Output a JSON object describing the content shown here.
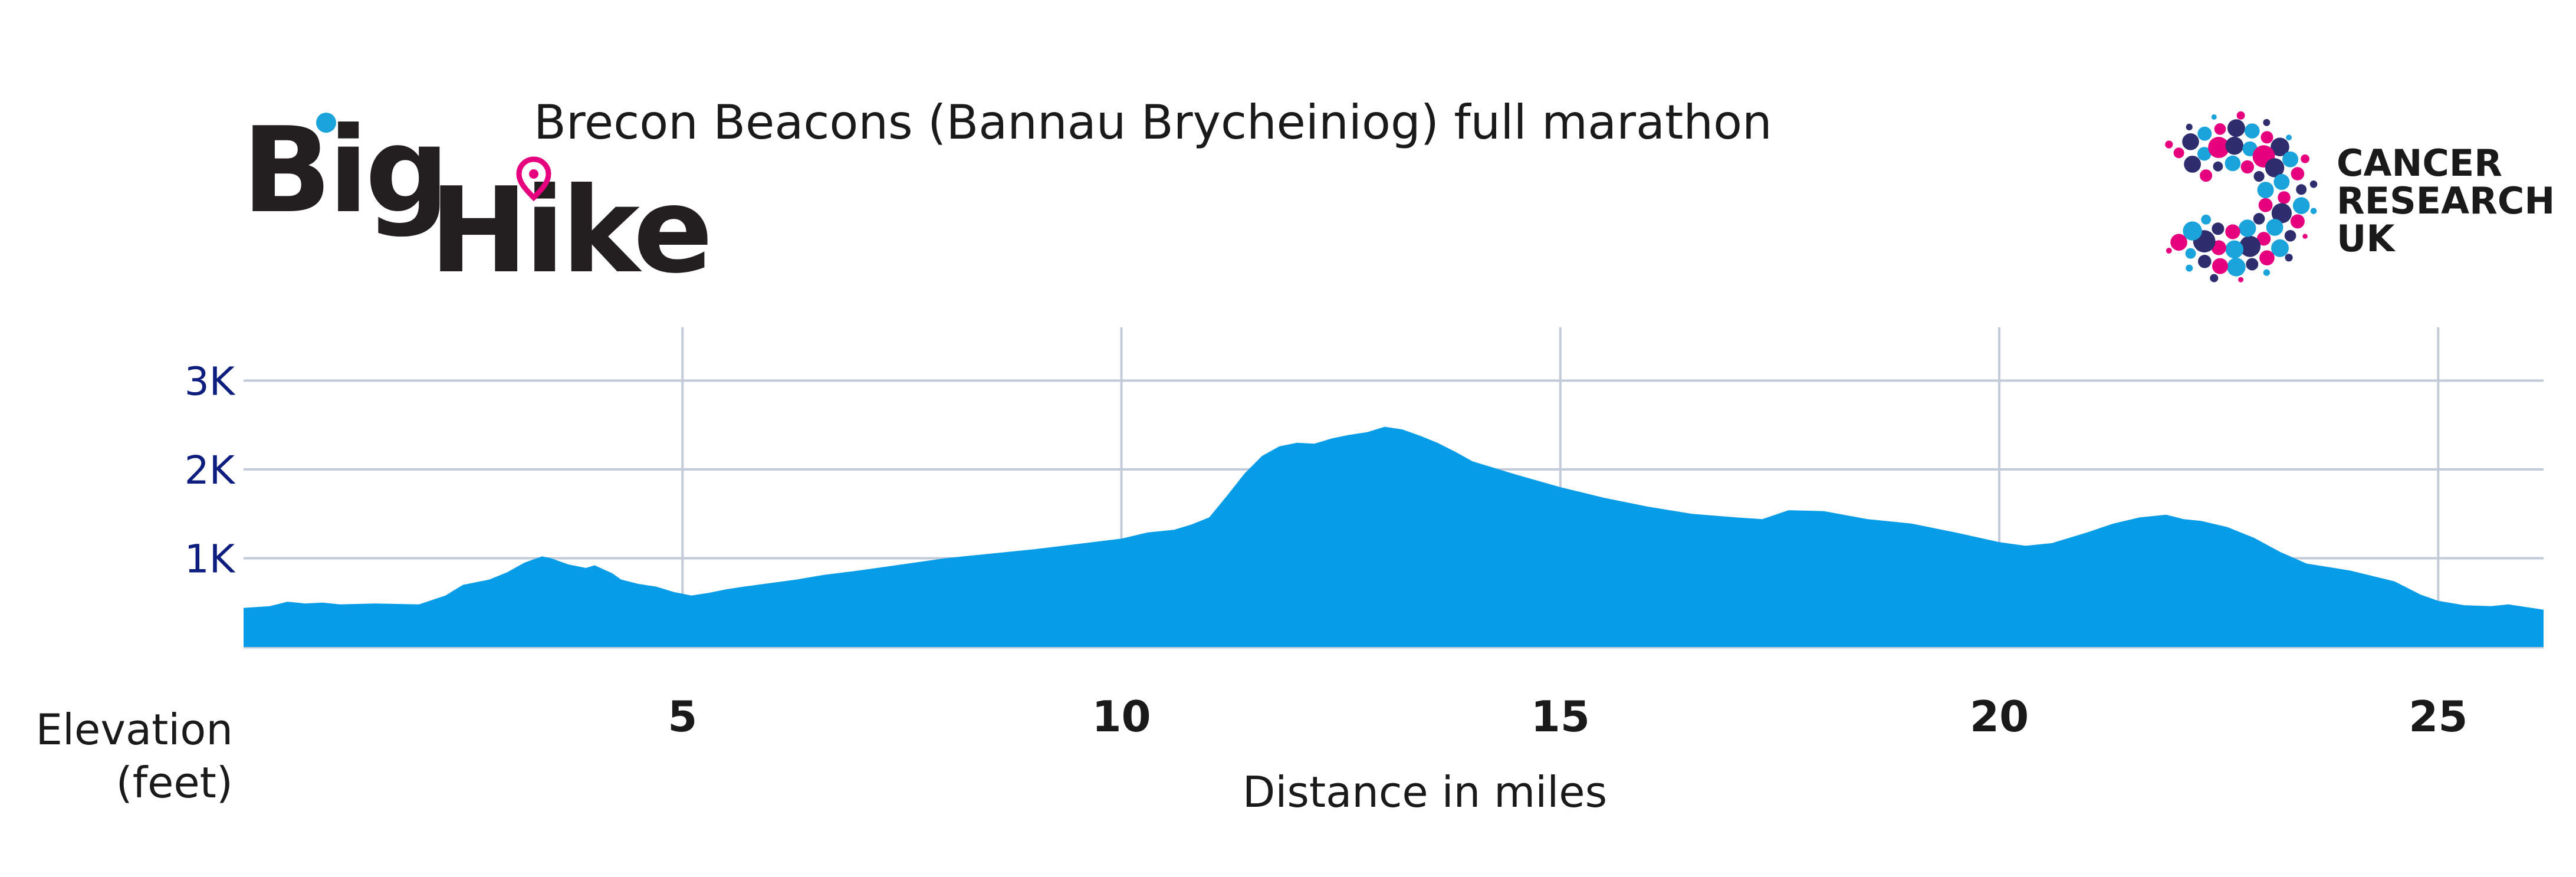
{
  "branding": {
    "big_hike_line1": "Big",
    "big_hike_line2": "Hike",
    "cruk_line1": "CANCER",
    "cruk_line2": "RESEARCH",
    "cruk_line3": "UK"
  },
  "colors": {
    "area": "#069ce8",
    "ytick": "#0d1e7e",
    "grid": "#c3cad8",
    "text": "#1a1a1a",
    "logo_pink": "#e6007e",
    "logo_cyan": "#1ba3dc",
    "logo_navy": "#2e2d6e"
  },
  "chart_data": {
    "type": "area",
    "title": "Brecon Beacons (Bannau Brycheiniog) full marathon",
    "xlabel": "Distance in miles",
    "ylabel_line1": "Elevation",
    "ylabel_line2": "(feet)",
    "xlim": [
      0,
      26.2
    ],
    "ylim": [
      0,
      3600
    ],
    "xticks": [
      5,
      10,
      15,
      20,
      25
    ],
    "yticks": [
      1000,
      2000,
      3000
    ],
    "ytick_labels": [
      "1K",
      "2K",
      "3K"
    ],
    "grid": true,
    "series": [
      {
        "x": [
          0,
          0.3,
          0.5,
          0.7,
          0.9,
          1.1,
          1.5,
          2.0,
          2.3,
          2.5,
          2.8,
          3.0,
          3.2,
          3.4,
          3.5,
          3.7,
          3.9,
          4.0,
          4.2,
          4.3,
          4.5,
          4.7,
          4.9,
          5.1,
          5.3,
          5.5,
          5.7,
          6.0,
          6.3,
          6.6,
          7.0,
          7.5,
          8.0,
          8.5,
          9.0,
          9.5,
          10.0,
          10.3,
          10.6,
          10.8,
          11.0,
          11.2,
          11.4,
          11.6,
          11.8,
          12.0,
          12.2,
          12.4,
          12.6,
          12.8,
          13.0,
          13.2,
          13.4,
          13.6,
          13.8,
          14.0,
          14.5,
          15.0,
          15.5,
          16.0,
          16.5,
          17.0,
          17.3,
          17.6,
          18.0,
          18.5,
          19.0,
          19.5,
          20.0,
          20.3,
          20.6,
          21.0,
          21.3,
          21.6,
          21.9,
          22.1,
          22.3,
          22.6,
          22.9,
          23.2,
          23.5,
          24.0,
          24.5,
          24.8,
          25.0,
          25.3,
          25.6,
          25.8,
          26.0,
          26.2
        ],
        "y": [
          440,
          460,
          510,
          490,
          500,
          480,
          490,
          480,
          580,
          700,
          760,
          840,
          950,
          1020,
          1000,
          930,
          890,
          920,
          830,
          760,
          710,
          680,
          620,
          580,
          610,
          650,
          680,
          720,
          760,
          810,
          860,
          930,
          1000,
          1050,
          1100,
          1160,
          1220,
          1290,
          1320,
          1380,
          1460,
          1700,
          1950,
          2150,
          2260,
          2300,
          2290,
          2350,
          2390,
          2420,
          2480,
          2450,
          2380,
          2300,
          2200,
          2090,
          1940,
          1800,
          1680,
          1580,
          1500,
          1460,
          1440,
          1540,
          1530,
          1440,
          1390,
          1290,
          1180,
          1140,
          1170,
          1290,
          1390,
          1460,
          1490,
          1440,
          1420,
          1350,
          1230,
          1070,
          940,
          860,
          740,
          590,
          520,
          470,
          460,
          480,
          450,
          420
        ]
      }
    ]
  }
}
